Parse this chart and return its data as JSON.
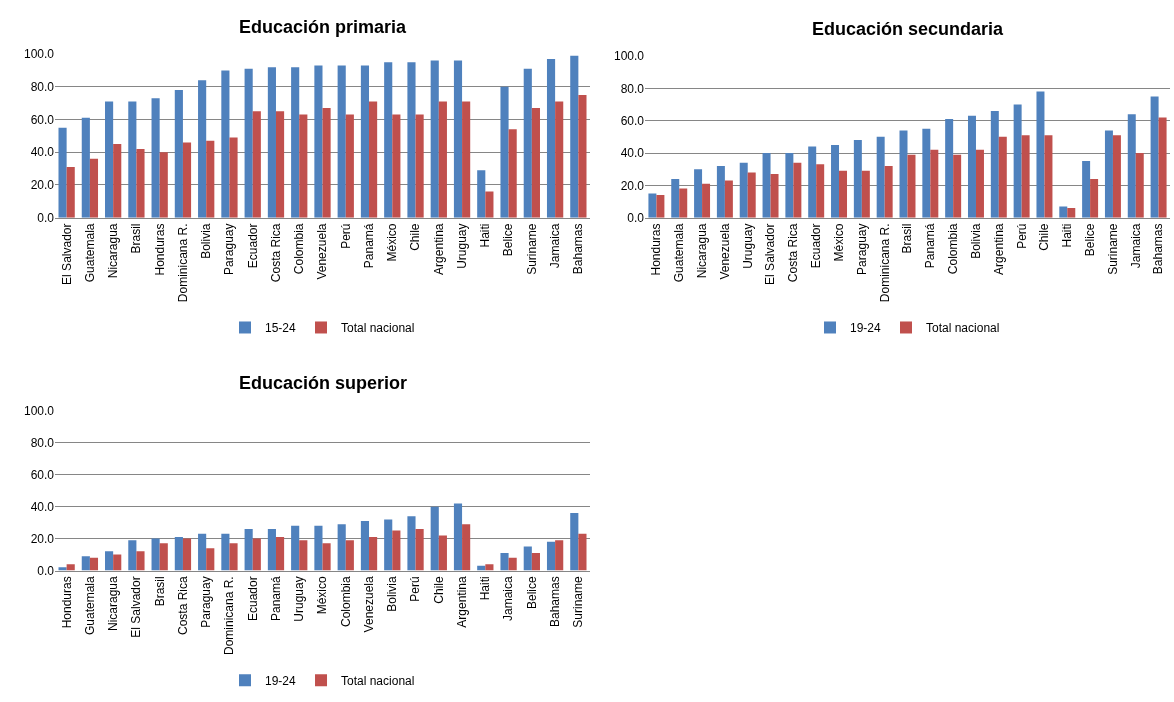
{
  "chart_data": [
    {
      "type": "bar",
      "title": "Educación primaria",
      "categories": [
        "El Salvador",
        "Guatemala",
        "Nicaragua",
        "Brasil",
        "Honduras",
        "Dominicana R.",
        "Bolivia",
        "Paraguay",
        "Ecuador",
        "Costa Rica",
        "Colombia",
        "Venezuela",
        "Perú",
        "Panamá",
        "México",
        "Chile",
        "Argentina",
        "Uruguay",
        "Haiti",
        "Belice",
        "Suriname",
        "Jamaica",
        "Bahamas"
      ],
      "series": [
        {
          "name": "15-24",
          "color": "#4f81bd",
          "values": [
            55,
            61,
            71,
            71,
            73,
            78,
            84,
            90,
            91,
            92,
            92,
            93,
            93,
            93,
            95,
            95,
            96,
            96,
            29,
            80,
            91,
            97,
            99
          ]
        },
        {
          "name": "Total nacional",
          "color": "#c0504d",
          "values": [
            31,
            36,
            45,
            42,
            40,
            46,
            47,
            49,
            65,
            65,
            63,
            67,
            63,
            71,
            63,
            63,
            71,
            71,
            16,
            54,
            67,
            71,
            75
          ]
        }
      ],
      "ylim": [
        0,
        100
      ],
      "yticks": [
        {
          "value": 0,
          "label": "0.0"
        },
        {
          "value": 20,
          "label": "20.0"
        },
        {
          "value": 40,
          "label": "40.0"
        },
        {
          "value": 60,
          "label": "60.0"
        },
        {
          "value": 80,
          "label": "80.0"
        },
        {
          "value": 100,
          "label": "100.0"
        }
      ],
      "grid": "y",
      "legend": "bottom"
    },
    {
      "type": "bar",
      "title": "Educación secundaria",
      "categories": [
        "Honduras",
        "Guatemala",
        "Nicaragua",
        "Venezuela",
        "Uruguay",
        "El Salvador",
        "Costa Rica",
        "Ecuador",
        "México",
        "Paraguay",
        "Dominicana R.",
        "Brasil",
        "Panamá",
        "Colombia",
        "Bolivia",
        "Argentina",
        "Perú",
        "Chile",
        "Haiti",
        "Belice",
        "Suriname",
        "Jamaica",
        "Bahamas"
      ],
      "series": [
        {
          "name": "19-24",
          "color": "#4f81bd",
          "values": [
            15,
            24,
            30,
            32,
            34,
            40,
            40,
            44,
            45,
            48,
            50,
            54,
            55,
            61,
            63,
            66,
            70,
            78,
            7,
            35,
            54,
            64,
            75
          ]
        },
        {
          "name": "Total nacional",
          "color": "#c0504d",
          "values": [
            14,
            18,
            21,
            23,
            28,
            27,
            34,
            33,
            29,
            29,
            32,
            39,
            42,
            39,
            42,
            50,
            51,
            51,
            6,
            24,
            51,
            40,
            62
          ]
        }
      ],
      "ylim": [
        0,
        100
      ],
      "yticks": [
        {
          "value": 0,
          "label": "0.0"
        },
        {
          "value": 20,
          "label": "20.0"
        },
        {
          "value": 40,
          "label": "40.0"
        },
        {
          "value": 60,
          "label": "60.0"
        },
        {
          "value": 80,
          "label": "80.0"
        },
        {
          "value": 100,
          "label": "100.0"
        }
      ],
      "grid": "y",
      "legend": "bottom"
    },
    {
      "type": "bar",
      "title": "Educación superior",
      "categories": [
        "Honduras",
        "Guatemala",
        "Nicaragua",
        "El Salvador",
        "Brasil",
        "Costa Rica",
        "Paraguay",
        "Dominicana R.",
        "Ecuador",
        "Panamá",
        "Uruguay",
        "México",
        "Colombia",
        "Venezuela",
        "Bolivia",
        "Perú",
        "Chile",
        "Argentina",
        "Haiti",
        "Jamaica",
        "Belice",
        "Bahamas",
        "Suriname"
      ],
      "series": [
        {
          "name": "19-24",
          "color": "#4f81bd",
          "values": [
            2,
            9,
            12,
            19,
            20,
            21,
            23,
            23,
            26,
            26,
            28,
            28,
            29,
            31,
            32,
            34,
            40,
            42,
            3,
            11,
            15,
            18,
            36
          ]
        },
        {
          "name": "Total nacional",
          "color": "#c0504d",
          "values": [
            4,
            8,
            10,
            12,
            17,
            20,
            14,
            17,
            20,
            21,
            19,
            17,
            19,
            21,
            25,
            26,
            22,
            29,
            4,
            8,
            11,
            19,
            23
          ]
        }
      ],
      "ylim": [
        0,
        100
      ],
      "yticks": [
        {
          "value": 0,
          "label": "0.0"
        },
        {
          "value": 20,
          "label": "20.0"
        },
        {
          "value": 40,
          "label": "40.0"
        },
        {
          "value": 60,
          "label": "60.0"
        },
        {
          "value": 80,
          "label": "80.0"
        },
        {
          "value": 100,
          "label": "100.0"
        }
      ],
      "grid": "y",
      "legend": "bottom"
    }
  ]
}
